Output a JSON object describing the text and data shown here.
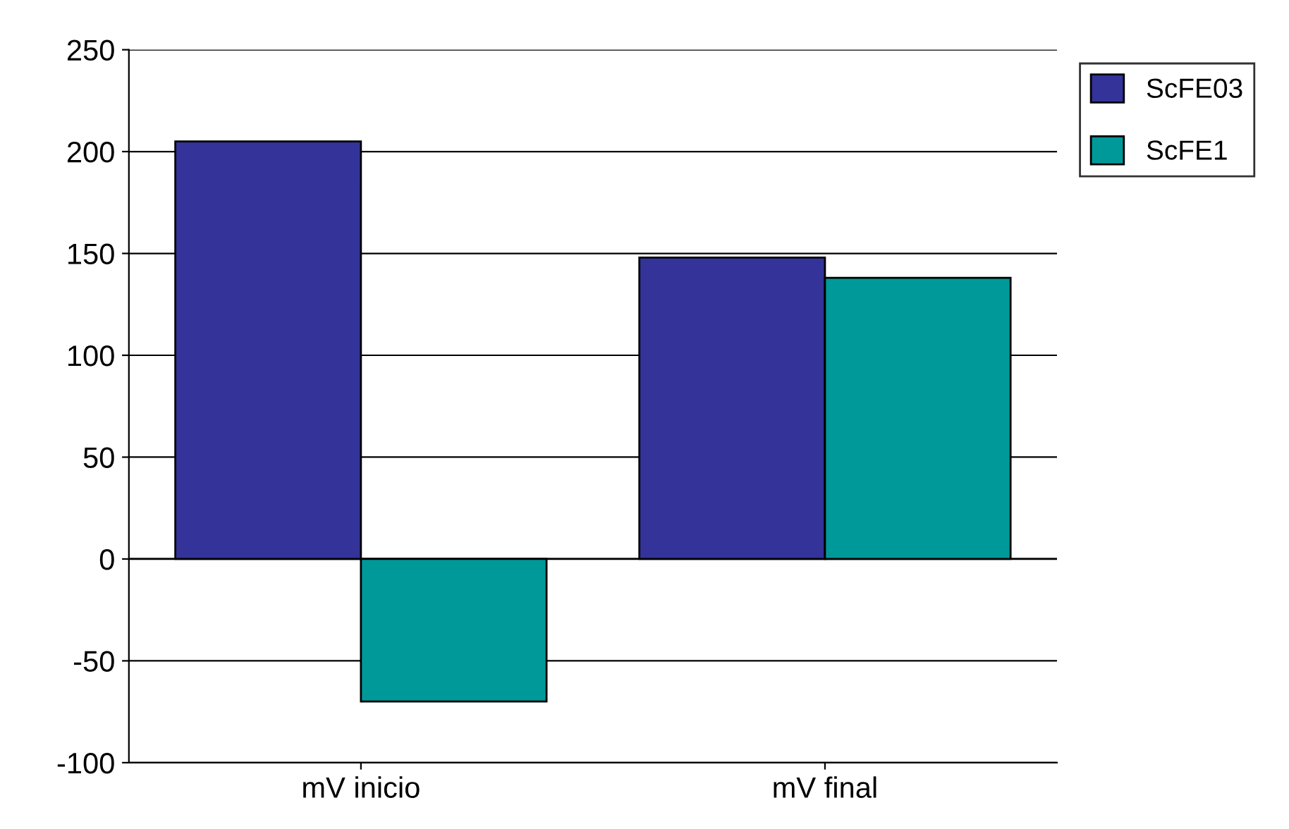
{
  "chart_data": {
    "type": "bar",
    "categories": [
      "mV inicio",
      "mV final"
    ],
    "series": [
      {
        "name": "ScFE03",
        "color": "#333399",
        "values": [
          205,
          148
        ]
      },
      {
        "name": "ScFE1",
        "color": "#009999",
        "values": [
          -70,
          138
        ]
      }
    ],
    "ylim": [
      -100,
      250
    ],
    "yticks": [
      -100,
      -50,
      0,
      50,
      100,
      150,
      200,
      250
    ],
    "grid": "y",
    "legend": "top right"
  }
}
